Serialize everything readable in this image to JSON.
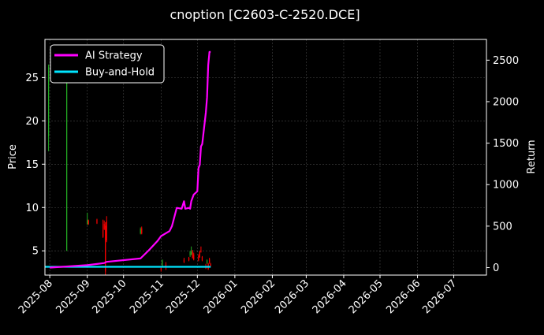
{
  "chart_data": {
    "type": "candlestick+line",
    "title": "cnoption [C2603-C-2520.DCE]",
    "ylabel_left": "Price",
    "ylabel_right": "Return",
    "xlim": [
      "2025-07-28",
      "2026-07-28"
    ],
    "ylim_left": [
      2.2,
      29.4
    ],
    "ylim_right": [
      -90,
      2750
    ],
    "x_ticks": [
      "2025-08",
      "2025-09",
      "2025-10",
      "2025-11",
      "2025-12",
      "2026-01",
      "2026-02",
      "2026-03",
      "2026-04",
      "2026-05",
      "2026-06",
      "2026-07"
    ],
    "y_ticks_left": [
      5,
      10,
      15,
      20,
      25
    ],
    "y_ticks_right": [
      0,
      500,
      1000,
      1500,
      2000,
      2500
    ],
    "grid": true,
    "legend_position": "top-left",
    "colors": {
      "up": "#22aa22",
      "down": "#ff0000",
      "ai_strategy": "#ff00ff",
      "buy_and_hold": "#00e5ff",
      "background": "#000000",
      "text": "#ffffff"
    },
    "series": [
      {
        "name": "AI Strategy",
        "x": [
          "2025-08-01",
          "2025-09-01",
          "2025-09-15",
          "2025-09-17",
          "2025-10-15",
          "2025-10-22",
          "2025-10-29",
          "2025-11-01",
          "2025-11-08",
          "2025-11-10",
          "2025-11-14",
          "2025-11-18",
          "2025-11-20",
          "2025-11-21",
          "2025-11-24",
          "2025-11-25",
          "2025-11-26",
          "2025-11-28",
          "2025-12-01",
          "2025-12-02",
          "2025-12-03",
          "2025-12-04",
          "2025-12-05",
          "2025-12-08",
          "2025-12-09",
          "2025-12-10",
          "2025-12-11",
          "2025-12-12"
        ],
        "values": [
          0,
          30,
          55,
          70,
          110,
          210,
          320,
          380,
          440,
          500,
          720,
          710,
          800,
          710,
          720,
          710,
          800,
          880,
          920,
          1200,
          1240,
          1460,
          1490,
          1870,
          2050,
          2440,
          2600,
          2600
        ]
      },
      {
        "name": "Buy-and-Hold",
        "x": [
          "2025-07-28",
          "2025-12-12"
        ],
        "values": [
          10,
          10
        ]
      }
    ],
    "candles": [
      {
        "date": "2025-07-31",
        "open": 18.2,
        "high": 26.5,
        "low": 16.5,
        "close": 26.2
      },
      {
        "date": "2025-08-15",
        "open": 5.0,
        "high": 27.6,
        "low": 5.0,
        "close": 27.4
      },
      {
        "date": "2025-09-01",
        "open": 8.1,
        "high": 9.4,
        "low": 8.0,
        "close": 8.6
      },
      {
        "date": "2025-09-02",
        "open": 8.5,
        "high": 8.6,
        "low": 8.0,
        "close": 8.1
      },
      {
        "date": "2025-09-09",
        "open": 8.6,
        "high": 8.7,
        "low": 8.1,
        "close": 8.2
      },
      {
        "date": "2025-09-14",
        "open": 7.4,
        "high": 8.6,
        "low": 6.5,
        "close": 6.6
      },
      {
        "date": "2025-09-15",
        "open": 8.1,
        "high": 8.5,
        "low": 7.4,
        "close": 7.5
      },
      {
        "date": "2025-09-16",
        "open": 7.9,
        "high": 8.3,
        "low": 2.2,
        "close": 2.6
      },
      {
        "date": "2025-09-17",
        "open": 8.4,
        "high": 9.0,
        "low": 6.0,
        "close": 6.2
      },
      {
        "date": "2025-10-15",
        "open": 7.0,
        "high": 7.7,
        "low": 6.9,
        "close": 7.5
      },
      {
        "date": "2025-10-16",
        "open": 7.6,
        "high": 7.8,
        "low": 6.9,
        "close": 7.0
      },
      {
        "date": "2025-11-01",
        "open": 3.0,
        "high": 3.2,
        "low": 2.6,
        "close": 2.8
      },
      {
        "date": "2025-11-02",
        "open": 3.3,
        "high": 4.0,
        "low": 3.2,
        "close": 3.9
      },
      {
        "date": "2025-11-05",
        "open": 3.4,
        "high": 3.7,
        "low": 2.8,
        "close": 3.2
      },
      {
        "date": "2025-11-20",
        "open": 4.0,
        "high": 4.2,
        "low": 3.6,
        "close": 3.7
      },
      {
        "date": "2025-11-24",
        "open": 4.2,
        "high": 4.3,
        "low": 3.8,
        "close": 3.9
      },
      {
        "date": "2025-11-25",
        "open": 4.5,
        "high": 5.0,
        "low": 4.3,
        "close": 4.9
      },
      {
        "date": "2025-11-26",
        "open": 4.6,
        "high": 5.5,
        "low": 4.5,
        "close": 4.9
      },
      {
        "date": "2025-11-27",
        "open": 5.0,
        "high": 5.1,
        "low": 4.1,
        "close": 4.2
      },
      {
        "date": "2025-11-28",
        "open": 4.6,
        "high": 4.8,
        "low": 3.9,
        "close": 4.0
      },
      {
        "date": "2025-12-02",
        "open": 4.4,
        "high": 4.6,
        "low": 3.8,
        "close": 3.9
      },
      {
        "date": "2025-12-03",
        "open": 4.9,
        "high": 5.0,
        "low": 4.2,
        "close": 4.3
      },
      {
        "date": "2025-12-04",
        "open": 5.0,
        "high": 5.5,
        "low": 4.8,
        "close": 4.9
      },
      {
        "date": "2025-12-05",
        "open": 4.3,
        "high": 4.4,
        "low": 3.8,
        "close": 3.9
      },
      {
        "date": "2025-12-08",
        "open": 3.2,
        "high": 3.5,
        "low": 2.9,
        "close": 3.0
      },
      {
        "date": "2025-12-09",
        "open": 3.6,
        "high": 4.0,
        "low": 3.5,
        "close": 3.9
      },
      {
        "date": "2025-12-10",
        "open": 3.5,
        "high": 3.6,
        "low": 2.8,
        "close": 2.9
      },
      {
        "date": "2025-12-11",
        "open": 4.0,
        "high": 4.2,
        "low": 3.5,
        "close": 3.6
      },
      {
        "date": "2025-12-12",
        "open": 3.5,
        "high": 3.6,
        "low": 3.2,
        "close": 3.3
      }
    ]
  }
}
